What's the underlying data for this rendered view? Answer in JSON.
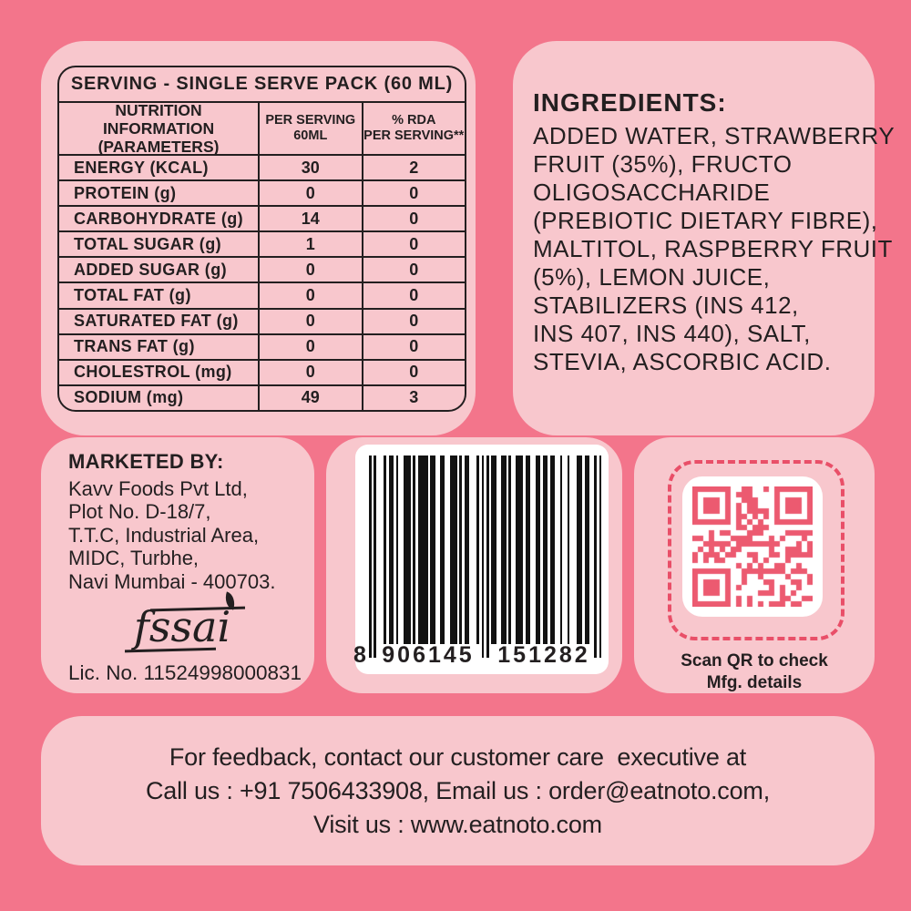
{
  "colors": {
    "background": "#F3758B",
    "panel": "#F8C7CD",
    "ink": "#231F20",
    "qr_red": "#EC5A70",
    "dash_red": "#E94F68",
    "barcode_black": "#121212",
    "box_white": "#FFFFFF"
  },
  "nutrition": {
    "title": "SERVING - SINGLE SERVE PACK (60 ML)",
    "columns": [
      {
        "line1": "NUTRITION INFORMATION",
        "line2": "(PARAMETERS)"
      },
      {
        "line1": "PER SERVING",
        "line2": "60ML"
      },
      {
        "line1": "% RDA",
        "line2": "PER SERVING**"
      }
    ],
    "rows": [
      {
        "parameter": "ENERGY (KCAL)",
        "per_serving": "30",
        "rda": "2"
      },
      {
        "parameter": "PROTEIN (g)",
        "per_serving": "0",
        "rda": "0"
      },
      {
        "parameter": "CARBOHYDRATE (g)",
        "per_serving": "14",
        "rda": "0"
      },
      {
        "parameter": "TOTAL SUGAR (g)",
        "per_serving": "1",
        "rda": "0"
      },
      {
        "parameter": "ADDED SUGAR (g)",
        "per_serving": "0",
        "rda": "0"
      },
      {
        "parameter": "TOTAL FAT (g)",
        "per_serving": "0",
        "rda": "0"
      },
      {
        "parameter": "SATURATED FAT (g)",
        "per_serving": "0",
        "rda": "0"
      },
      {
        "parameter": "TRANS FAT (g)",
        "per_serving": "0",
        "rda": "0"
      },
      {
        "parameter": "CHOLESTROL (mg)",
        "per_serving": "0",
        "rda": "0"
      },
      {
        "parameter": "SODIUM (mg)",
        "per_serving": "49",
        "rda": "3"
      }
    ]
  },
  "ingredients": {
    "heading": "INGREDIENTS:",
    "lines": [
      "ADDED WATER, STRAWBERRY",
      "FRUIT (35%), FRUCTO",
      "OLIGOSACCHARIDE",
      "(PREBIOTIC DIETARY FIBRE),",
      "MALTITOL, RASPBERRY FRUIT",
      "(5%), LEMON JUICE,",
      "STABILIZERS (INS 412,",
      "INS 407, INS 440), SALT,",
      "STEVIA, ASCORBIC ACID."
    ]
  },
  "marketed_by": {
    "heading": "MARKETED BY:",
    "address_lines": [
      "Kavv Foods Pvt Ltd,",
      "Plot No. D-18/7,",
      "T.T.C, Industrial Area,",
      "MIDC, Turbhe,",
      "Navi Mumbai - 400703."
    ],
    "fssai_logo_text": "fssai",
    "license": "Lic. No. 11524998000831"
  },
  "barcode": {
    "number": "8906145151282",
    "display_left": "8",
    "display_group1": "906145",
    "display_group2": "151282"
  },
  "qr": {
    "caption_line1": "Scan QR to check",
    "caption_line2": "Mfg. details"
  },
  "feedback": {
    "lines": [
      "For feedback, contact our customer care  executive at",
      "Call us : +91 7506433908, Email us : order@eatnoto.com,",
      "Visit us : www.eatnoto.com"
    ]
  }
}
